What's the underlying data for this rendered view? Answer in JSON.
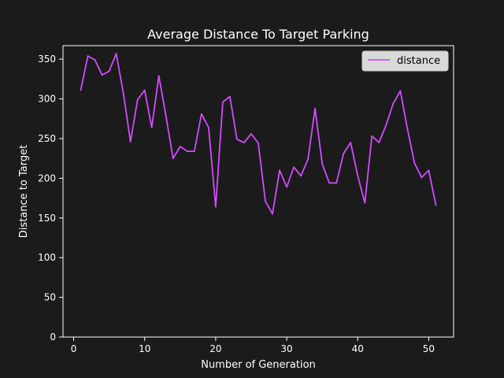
{
  "colors": {
    "background": "#1b1b1b",
    "axes": "#ffffff",
    "line": "#d24bff",
    "legend_bg": "#d9d9d9",
    "legend_text": "#000000"
  },
  "chart_data": {
    "type": "line",
    "title": "Average Distance To Target Parking",
    "xlabel": "Number of Generation",
    "ylabel": "Distance to Target",
    "xlim": [
      -1.5,
      53.5
    ],
    "ylim": [
      0,
      367
    ],
    "xticks": [
      0,
      10,
      20,
      30,
      40,
      50
    ],
    "yticks": [
      0,
      50,
      100,
      150,
      200,
      250,
      300,
      350
    ],
    "grid": false,
    "legend_position": "upper right",
    "series": [
      {
        "name": "distance",
        "x": [
          1,
          2,
          3,
          4,
          5,
          6,
          7,
          8,
          9,
          10,
          11,
          12,
          13,
          14,
          15,
          16,
          17,
          18,
          19,
          20,
          21,
          22,
          23,
          24,
          25,
          26,
          27,
          28,
          29,
          30,
          31,
          32,
          33,
          34,
          35,
          36,
          37,
          38,
          39,
          40,
          41,
          42,
          43,
          44,
          45,
          46,
          47,
          48,
          49,
          50,
          51
        ],
        "values": [
          311,
          354,
          349,
          330,
          335,
          357,
          307,
          246,
          299,
          311,
          264,
          329,
          278,
          225,
          240,
          234,
          234,
          281,
          264,
          164,
          296,
          303,
          249,
          245,
          256,
          244,
          171,
          155,
          210,
          189,
          214,
          203,
          224,
          288,
          218,
          194,
          194,
          231,
          245,
          203,
          169,
          253,
          245,
          267,
          294,
          310,
          262,
          219,
          201,
          210,
          166
        ]
      }
    ]
  }
}
